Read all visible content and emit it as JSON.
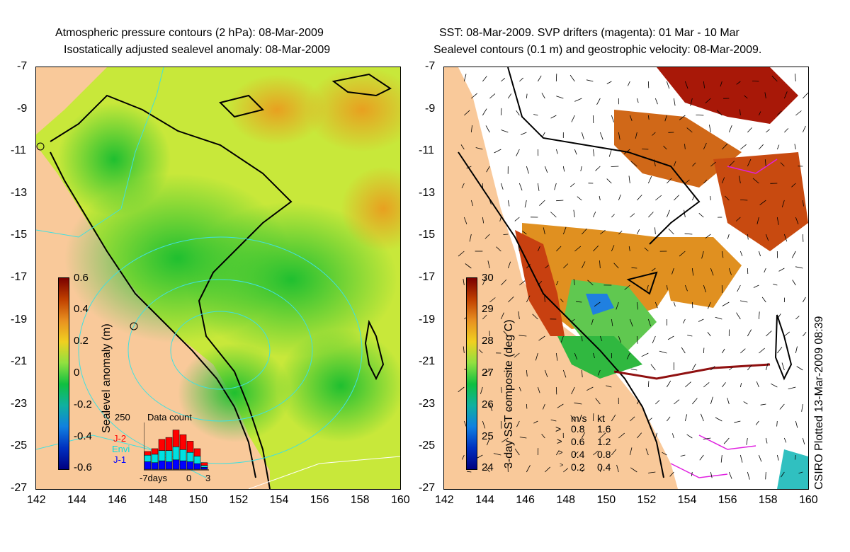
{
  "left_panel": {
    "title_line1": "Atmospheric pressure contours (2 hPa): 08-Mar-2009",
    "title_line2": "Isostatically adjusted sealevel anomaly: 08-Mar-2009",
    "colorbar": {
      "label": "Sealevel anomaly (m)",
      "ticks": [
        "0.6",
        "0.4",
        "0.2",
        "0",
        "-0.2",
        "-0.4",
        "-0.6"
      ],
      "range": [
        -0.6,
        0.6
      ]
    },
    "data_count": {
      "title": "Data count",
      "y_max_label": "250",
      "x_labels": [
        "-7days",
        "0",
        "3"
      ],
      "legend": [
        {
          "label": "J-2",
          "color": "#ff0000"
        },
        {
          "label": "Envi",
          "color": "#00e0e0"
        },
        {
          "label": "J-1",
          "color": "#0000ff"
        }
      ],
      "bars": [
        {
          "j1": 40,
          "envi": 35,
          "j2": 20
        },
        {
          "j1": 35,
          "envi": 45,
          "j2": 30
        },
        {
          "j1": 45,
          "envi": 55,
          "j2": 60
        },
        {
          "j1": 40,
          "envi": 60,
          "j2": 70
        },
        {
          "j1": 50,
          "envi": 70,
          "j2": 90
        },
        {
          "j1": 45,
          "envi": 60,
          "j2": 80
        },
        {
          "j1": 40,
          "envi": 50,
          "j2": 60
        },
        {
          "j1": 30,
          "envi": 40,
          "j2": 40
        },
        {
          "j1": 10,
          "envi": 10,
          "j2": 15
        }
      ]
    }
  },
  "right_panel": {
    "title_line1": "SST: 08-Mar-2009. SVP drifters (magenta): 01 Mar - 10 Mar",
    "title_line2": "Sealevel contours (0.1 m) and geostrophic velocity: 08-Mar-2009.",
    "colorbar": {
      "label": "3-day SST composite (deg C)",
      "ticks": [
        "30",
        "29",
        "28",
        "27",
        "26",
        "25",
        "24"
      ],
      "range": [
        24,
        30
      ]
    },
    "velocity_legend": {
      "header_ms": "m/s",
      "header_kt": "kt",
      "rows": [
        {
          "ms": "0.8",
          "kt": "1.6"
        },
        {
          "ms": "0.6",
          "kt": "1.2"
        },
        {
          "ms": "0.4",
          "kt": "0.8"
        },
        {
          "ms": "0.2",
          "kt": "0.4"
        }
      ]
    }
  },
  "axes": {
    "x_ticks": [
      "142",
      "144",
      "146",
      "148",
      "150",
      "152",
      "154",
      "156",
      "158",
      "160"
    ],
    "y_ticks": [
      "-7",
      "-9",
      "-11",
      "-13",
      "-15",
      "-17",
      "-19",
      "-21",
      "-23",
      "-25",
      "-27"
    ],
    "lon_range": [
      142,
      160
    ],
    "lat_range": [
      -27,
      -7
    ]
  },
  "credit": "CSIRO Plotted 13-Mar-2009 08:39",
  "colors": {
    "land": "#f9c99a",
    "contour_cyan": "#40e0e0",
    "drifter_magenta": "#e020e0"
  }
}
